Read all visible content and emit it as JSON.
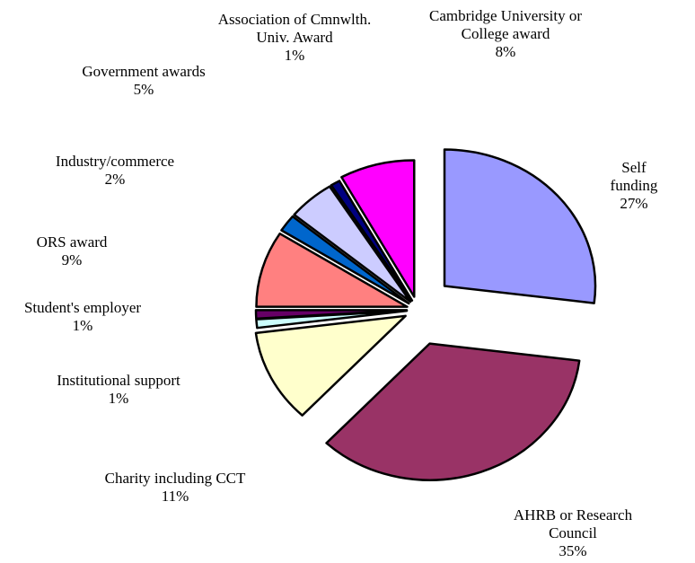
{
  "chart_data": {
    "type": "pie",
    "categories": [
      "Self funding",
      "AHRB or Research Council",
      "Charity including CCT",
      "Institutional support",
      "Student's employer",
      "ORS award",
      "Industry/commerce",
      "Government  awards",
      "Association of Cmnwlth.\nUniv. Award",
      "Cambridge University or\nCollege  award"
    ],
    "values": [
      27,
      35,
      11,
      1,
      1,
      9,
      2,
      5,
      1,
      8
    ],
    "value_labels": [
      "27%",
      "35%",
      "11%",
      "1%",
      "1%",
      "9%",
      "2%",
      "5%",
      "1%",
      "8%"
    ],
    "colors": [
      "#9999ff",
      "#993366",
      "#ffffcc",
      "#ccffff",
      "#660066",
      "#ff8080",
      "#0066cc",
      "#ccccff",
      "#000080",
      "#ff00ff"
    ]
  }
}
